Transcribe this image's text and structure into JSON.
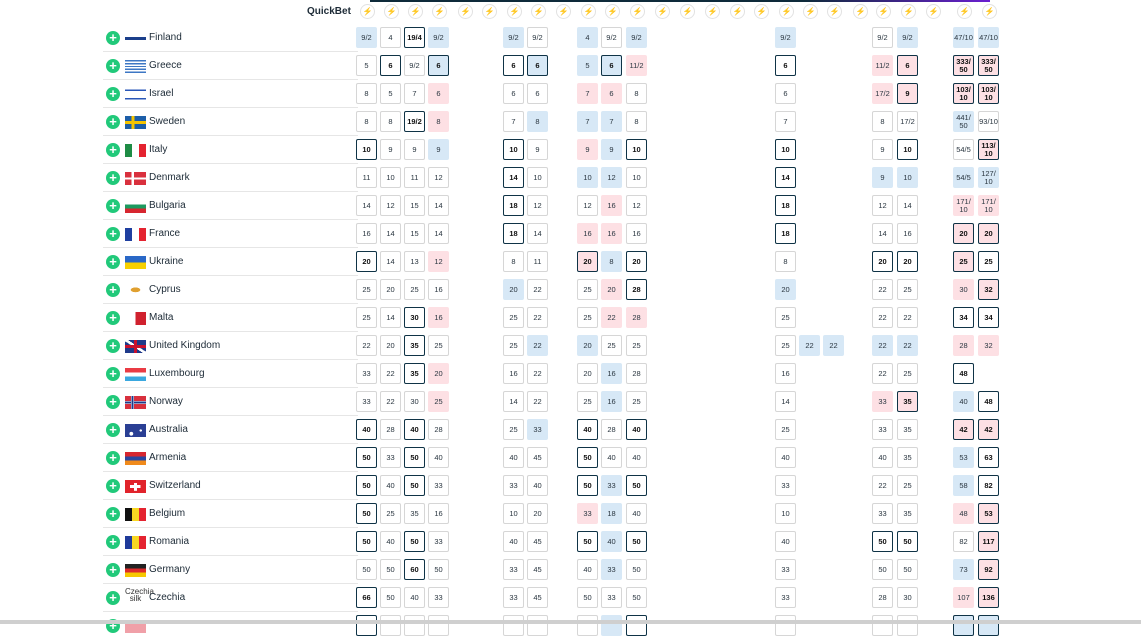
{
  "header": {
    "quickbet_label": "QuickBet",
    "quickbet_icon": "lightning-icon",
    "bookmaker_count": 26
  },
  "colors": {
    "add": "#21c97a",
    "blue": "#d7e8f6",
    "pink": "#fde0e4",
    "best_border": "#0f3346"
  },
  "rows": [
    {
      "name": "Finland",
      "flag": "fi",
      "cells": {
        "0": [
          "9/2",
          "b"
        ],
        "1": [
          "4",
          "w"
        ],
        "2": [
          "19/4",
          "B"
        ],
        "3": [
          "9/2",
          "b"
        ],
        "6": [
          "9/2",
          "b"
        ],
        "7": [
          "9/2",
          "w"
        ],
        "9": [
          "4",
          "b"
        ],
        "10": [
          "9/2",
          "w"
        ],
        "11": [
          "9/2",
          "b"
        ],
        "17": [
          "9/2",
          "b"
        ],
        "21": [
          "9/2",
          "w"
        ],
        "22": [
          "9/2",
          "b"
        ],
        "24": [
          "47/10",
          "b"
        ],
        "25": [
          "47/10",
          "b"
        ]
      }
    },
    {
      "name": "Greece",
      "flag": "gr",
      "cells": {
        "0": [
          "5",
          "w"
        ],
        "1": [
          "6",
          "B"
        ],
        "2": [
          "9/2",
          "w"
        ],
        "3": [
          "6",
          "Bb"
        ],
        "6": [
          "6",
          "B"
        ],
        "7": [
          "6",
          "Bb"
        ],
        "9": [
          "5",
          "b"
        ],
        "10": [
          "6",
          "Bb"
        ],
        "11": [
          "11/2",
          "p"
        ],
        "17": [
          "6",
          "B"
        ],
        "21": [
          "11/2",
          "p"
        ],
        "22": [
          "6",
          "Bp"
        ],
        "24": [
          "333/ 50",
          "Bp"
        ],
        "25": [
          "333/ 50",
          "Bp"
        ]
      }
    },
    {
      "name": "Israel",
      "flag": "il",
      "cells": {
        "0": [
          "8",
          "w"
        ],
        "1": [
          "5",
          "w"
        ],
        "2": [
          "7",
          "w"
        ],
        "3": [
          "6",
          "p"
        ],
        "6": [
          "6",
          "w"
        ],
        "7": [
          "6",
          "w"
        ],
        "9": [
          "7",
          "p"
        ],
        "10": [
          "6",
          "p"
        ],
        "11": [
          "8",
          "w"
        ],
        "17": [
          "6",
          "w"
        ],
        "21": [
          "17/2",
          "p"
        ],
        "22": [
          "9",
          "Bp"
        ],
        "24": [
          "103/ 10",
          "Bp"
        ],
        "25": [
          "103/ 10",
          "Bp"
        ]
      }
    },
    {
      "name": "Sweden",
      "flag": "se",
      "cells": {
        "0": [
          "8",
          "w"
        ],
        "1": [
          "8",
          "w"
        ],
        "2": [
          "19/2",
          "B"
        ],
        "3": [
          "8",
          "p"
        ],
        "6": [
          "7",
          "w"
        ],
        "7": [
          "8",
          "b"
        ],
        "9": [
          "7",
          "b"
        ],
        "10": [
          "7",
          "b"
        ],
        "11": [
          "8",
          "w"
        ],
        "17": [
          "7",
          "w"
        ],
        "21": [
          "8",
          "w"
        ],
        "22": [
          "17/2",
          "w"
        ],
        "24": [
          "441/ 50",
          "b"
        ],
        "25": [
          "93/10",
          "w"
        ]
      }
    },
    {
      "name": "Italy",
      "flag": "it",
      "cells": {
        "0": [
          "10",
          "B"
        ],
        "1": [
          "9",
          "w"
        ],
        "2": [
          "9",
          "w"
        ],
        "3": [
          "9",
          "b"
        ],
        "6": [
          "10",
          "B"
        ],
        "7": [
          "9",
          "w"
        ],
        "9": [
          "9",
          "p"
        ],
        "10": [
          "9",
          "b"
        ],
        "11": [
          "10",
          "B"
        ],
        "17": [
          "10",
          "B"
        ],
        "21": [
          "9",
          "w"
        ],
        "22": [
          "10",
          "B"
        ],
        "24": [
          "54/5",
          "w"
        ],
        "25": [
          "113/ 10",
          "Bp"
        ]
      }
    },
    {
      "name": "Denmark",
      "flag": "dk",
      "cells": {
        "0": [
          "11",
          "w"
        ],
        "1": [
          "10",
          "w"
        ],
        "2": [
          "11",
          "w"
        ],
        "3": [
          "12",
          "w"
        ],
        "6": [
          "14",
          "B"
        ],
        "7": [
          "10",
          "w"
        ],
        "9": [
          "10",
          "b"
        ],
        "10": [
          "12",
          "b"
        ],
        "11": [
          "10",
          "w"
        ],
        "17": [
          "14",
          "B"
        ],
        "21": [
          "9",
          "b"
        ],
        "22": [
          "10",
          "b"
        ],
        "24": [
          "54/5",
          "b"
        ],
        "25": [
          "127/ 10",
          "b"
        ]
      }
    },
    {
      "name": "Bulgaria",
      "flag": "bg",
      "cells": {
        "0": [
          "14",
          "w"
        ],
        "1": [
          "12",
          "w"
        ],
        "2": [
          "15",
          "w"
        ],
        "3": [
          "14",
          "w"
        ],
        "6": [
          "18",
          "B"
        ],
        "7": [
          "12",
          "w"
        ],
        "9": [
          "12",
          "w"
        ],
        "10": [
          "16",
          "p"
        ],
        "11": [
          "12",
          "w"
        ],
        "17": [
          "18",
          "B"
        ],
        "21": [
          "12",
          "w"
        ],
        "22": [
          "14",
          "w"
        ],
        "24": [
          "171/ 10",
          "p"
        ],
        "25": [
          "171/ 10",
          "p"
        ]
      }
    },
    {
      "name": "France",
      "flag": "fr",
      "cells": {
        "0": [
          "16",
          "w"
        ],
        "1": [
          "14",
          "w"
        ],
        "2": [
          "15",
          "w"
        ],
        "3": [
          "14",
          "w"
        ],
        "6": [
          "18",
          "B"
        ],
        "7": [
          "14",
          "w"
        ],
        "9": [
          "16",
          "p"
        ],
        "10": [
          "16",
          "p"
        ],
        "11": [
          "16",
          "w"
        ],
        "17": [
          "18",
          "B"
        ],
        "21": [
          "14",
          "w"
        ],
        "22": [
          "16",
          "w"
        ],
        "24": [
          "20",
          "Bp"
        ],
        "25": [
          "20",
          "Bp"
        ]
      }
    },
    {
      "name": "Ukraine",
      "flag": "ua",
      "cells": {
        "0": [
          "20",
          "B"
        ],
        "1": [
          "14",
          "w"
        ],
        "2": [
          "13",
          "w"
        ],
        "3": [
          "12",
          "p"
        ],
        "6": [
          "8",
          "w"
        ],
        "7": [
          "11",
          "w"
        ],
        "9": [
          "20",
          "Bp"
        ],
        "10": [
          "8",
          "b"
        ],
        "11": [
          "20",
          "B"
        ],
        "17": [
          "8",
          "w"
        ],
        "21": [
          "20",
          "B"
        ],
        "22": [
          "20",
          "B"
        ],
        "24": [
          "25",
          "Bp"
        ],
        "25": [
          "25",
          "B"
        ]
      }
    },
    {
      "name": "Cyprus",
      "flag": "cy",
      "cells": {
        "0": [
          "25",
          "w"
        ],
        "1": [
          "20",
          "w"
        ],
        "2": [
          "25",
          "w"
        ],
        "3": [
          "16",
          "w"
        ],
        "6": [
          "20",
          "b"
        ],
        "7": [
          "22",
          "w"
        ],
        "9": [
          "25",
          "w"
        ],
        "10": [
          "20",
          "p"
        ],
        "11": [
          "28",
          "B"
        ],
        "17": [
          "20",
          "b"
        ],
        "21": [
          "22",
          "w"
        ],
        "22": [
          "25",
          "w"
        ],
        "24": [
          "30",
          "p"
        ],
        "25": [
          "32",
          "Bp"
        ]
      }
    },
    {
      "name": "Malta",
      "flag": "mt",
      "cells": {
        "0": [
          "25",
          "w"
        ],
        "1": [
          "14",
          "w"
        ],
        "2": [
          "30",
          "B"
        ],
        "3": [
          "16",
          "p"
        ],
        "6": [
          "25",
          "w"
        ],
        "7": [
          "22",
          "w"
        ],
        "9": [
          "25",
          "w"
        ],
        "10": [
          "22",
          "p"
        ],
        "11": [
          "28",
          "p"
        ],
        "17": [
          "25",
          "w"
        ],
        "21": [
          "22",
          "w"
        ],
        "22": [
          "22",
          "w"
        ],
        "24": [
          "34",
          "B"
        ],
        "25": [
          "34",
          "B"
        ]
      }
    },
    {
      "name": "United Kingdom",
      "flag": "gb",
      "cells": {
        "0": [
          "22",
          "w"
        ],
        "1": [
          "20",
          "w"
        ],
        "2": [
          "35",
          "B"
        ],
        "3": [
          "25",
          "w"
        ],
        "6": [
          "25",
          "w"
        ],
        "7": [
          "22",
          "b"
        ],
        "9": [
          "20",
          "b"
        ],
        "10": [
          "25",
          "w"
        ],
        "11": [
          "25",
          "w"
        ],
        "17": [
          "25",
          "w"
        ],
        "18": [
          "22",
          "b"
        ],
        "19": [
          "22",
          "b"
        ],
        "21": [
          "22",
          "b"
        ],
        "22": [
          "22",
          "b"
        ],
        "24": [
          "28",
          "p"
        ],
        "25": [
          "32",
          "p"
        ]
      }
    },
    {
      "name": "Luxembourg",
      "flag": "lu",
      "cells": {
        "0": [
          "33",
          "w"
        ],
        "1": [
          "22",
          "w"
        ],
        "2": [
          "35",
          "B"
        ],
        "3": [
          "20",
          "p"
        ],
        "6": [
          "16",
          "w"
        ],
        "7": [
          "22",
          "w"
        ],
        "9": [
          "20",
          "w"
        ],
        "10": [
          "16",
          "b"
        ],
        "11": [
          "28",
          "w"
        ],
        "17": [
          "16",
          "w"
        ],
        "21": [
          "22",
          "w"
        ],
        "22": [
          "25",
          "w"
        ],
        "24": [
          "48",
          "B"
        ]
      }
    },
    {
      "name": "Norway",
      "flag": "no",
      "cells": {
        "0": [
          "33",
          "w"
        ],
        "1": [
          "22",
          "w"
        ],
        "2": [
          "30",
          "w"
        ],
        "3": [
          "25",
          "p"
        ],
        "6": [
          "14",
          "w"
        ],
        "7": [
          "22",
          "w"
        ],
        "9": [
          "25",
          "w"
        ],
        "10": [
          "16",
          "b"
        ],
        "11": [
          "25",
          "w"
        ],
        "17": [
          "14",
          "w"
        ],
        "21": [
          "33",
          "p"
        ],
        "22": [
          "35",
          "Bp"
        ],
        "24": [
          "40",
          "b"
        ],
        "25": [
          "48",
          "B"
        ]
      }
    },
    {
      "name": "Australia",
      "flag": "au",
      "cells": {
        "0": [
          "40",
          "B"
        ],
        "1": [
          "28",
          "w"
        ],
        "2": [
          "40",
          "B"
        ],
        "3": [
          "28",
          "w"
        ],
        "6": [
          "25",
          "w"
        ],
        "7": [
          "33",
          "b"
        ],
        "9": [
          "40",
          "B"
        ],
        "10": [
          "28",
          "w"
        ],
        "11": [
          "40",
          "B"
        ],
        "17": [
          "25",
          "w"
        ],
        "21": [
          "33",
          "w"
        ],
        "22": [
          "35",
          "w"
        ],
        "24": [
          "42",
          "Bp"
        ],
        "25": [
          "42",
          "Bp"
        ]
      }
    },
    {
      "name": "Armenia",
      "flag": "am",
      "cells": {
        "0": [
          "50",
          "B"
        ],
        "1": [
          "33",
          "w"
        ],
        "2": [
          "50",
          "B"
        ],
        "3": [
          "40",
          "w"
        ],
        "6": [
          "40",
          "w"
        ],
        "7": [
          "45",
          "w"
        ],
        "9": [
          "50",
          "B"
        ],
        "10": [
          "40",
          "w"
        ],
        "11": [
          "40",
          "w"
        ],
        "17": [
          "40",
          "w"
        ],
        "21": [
          "40",
          "w"
        ],
        "22": [
          "35",
          "w"
        ],
        "24": [
          "53",
          "b"
        ],
        "25": [
          "63",
          "B"
        ]
      }
    },
    {
      "name": "Switzerland",
      "flag": "ch",
      "cells": {
        "0": [
          "50",
          "B"
        ],
        "1": [
          "40",
          "w"
        ],
        "2": [
          "50",
          "B"
        ],
        "3": [
          "33",
          "w"
        ],
        "6": [
          "33",
          "w"
        ],
        "7": [
          "40",
          "w"
        ],
        "9": [
          "50",
          "B"
        ],
        "10": [
          "33",
          "b"
        ],
        "11": [
          "50",
          "B"
        ],
        "17": [
          "33",
          "w"
        ],
        "21": [
          "22",
          "w"
        ],
        "22": [
          "25",
          "w"
        ],
        "24": [
          "58",
          "b"
        ],
        "25": [
          "82",
          "B"
        ]
      }
    },
    {
      "name": "Belgium",
      "flag": "be",
      "cells": {
        "0": [
          "50",
          "B"
        ],
        "1": [
          "25",
          "w"
        ],
        "2": [
          "35",
          "w"
        ],
        "3": [
          "16",
          "w"
        ],
        "6": [
          "10",
          "w"
        ],
        "7": [
          "20",
          "w"
        ],
        "9": [
          "33",
          "p"
        ],
        "10": [
          "18",
          "b"
        ],
        "11": [
          "40",
          "w"
        ],
        "17": [
          "10",
          "w"
        ],
        "21": [
          "33",
          "w"
        ],
        "22": [
          "35",
          "w"
        ],
        "24": [
          "48",
          "p"
        ],
        "25": [
          "53",
          "Bp"
        ]
      }
    },
    {
      "name": "Romania",
      "flag": "ro",
      "cells": {
        "0": [
          "50",
          "B"
        ],
        "1": [
          "40",
          "w"
        ],
        "2": [
          "50",
          "B"
        ],
        "3": [
          "33",
          "w"
        ],
        "6": [
          "40",
          "w"
        ],
        "7": [
          "45",
          "w"
        ],
        "9": [
          "50",
          "B"
        ],
        "10": [
          "40",
          "b"
        ],
        "11": [
          "50",
          "B"
        ],
        "17": [
          "40",
          "w"
        ],
        "21": [
          "50",
          "B"
        ],
        "22": [
          "50",
          "B"
        ],
        "24": [
          "82",
          "w"
        ],
        "25": [
          "117",
          "Bp"
        ]
      }
    },
    {
      "name": "Germany",
      "flag": "de",
      "cells": {
        "0": [
          "50",
          "w"
        ],
        "1": [
          "50",
          "w"
        ],
        "2": [
          "60",
          "B"
        ],
        "3": [
          "50",
          "w"
        ],
        "6": [
          "33",
          "w"
        ],
        "7": [
          "45",
          "w"
        ],
        "9": [
          "40",
          "w"
        ],
        "10": [
          "33",
          "b"
        ],
        "11": [
          "50",
          "w"
        ],
        "17": [
          "33",
          "w"
        ],
        "21": [
          "50",
          "w"
        ],
        "22": [
          "50",
          "w"
        ],
        "24": [
          "73",
          "b"
        ],
        "25": [
          "92",
          "Bp"
        ]
      }
    },
    {
      "name": "Czechia",
      "flag": "cz",
      "flag_alt": "Czechia silk",
      "cells": {
        "0": [
          "66",
          "B"
        ],
        "1": [
          "50",
          "w"
        ],
        "2": [
          "40",
          "w"
        ],
        "3": [
          "33",
          "w"
        ],
        "6": [
          "33",
          "w"
        ],
        "7": [
          "45",
          "w"
        ],
        "9": [
          "50",
          "w"
        ],
        "10": [
          "33",
          "w"
        ],
        "11": [
          "50",
          "w"
        ],
        "17": [
          "33",
          "w"
        ],
        "21": [
          "28",
          "w"
        ],
        "22": [
          "30",
          "w"
        ],
        "24": [
          "107",
          "p"
        ],
        "25": [
          "136",
          "Bp"
        ]
      }
    },
    {
      "name": "",
      "flag": "partial",
      "cells": {
        "0": [
          "",
          "B"
        ],
        "1": [
          "",
          "w"
        ],
        "2": [
          "",
          "w"
        ],
        "3": [
          "",
          "w"
        ],
        "6": [
          "",
          "w"
        ],
        "7": [
          "",
          "w"
        ],
        "9": [
          "",
          "w"
        ],
        "10": [
          "",
          "b"
        ],
        "11": [
          "",
          "B"
        ],
        "17": [
          "",
          "w"
        ],
        "21": [
          "",
          "w"
        ],
        "22": [
          "",
          "w"
        ],
        "24": [
          "",
          "Bb"
        ],
        "25": [
          "",
          "Bb"
        ]
      }
    }
  ]
}
